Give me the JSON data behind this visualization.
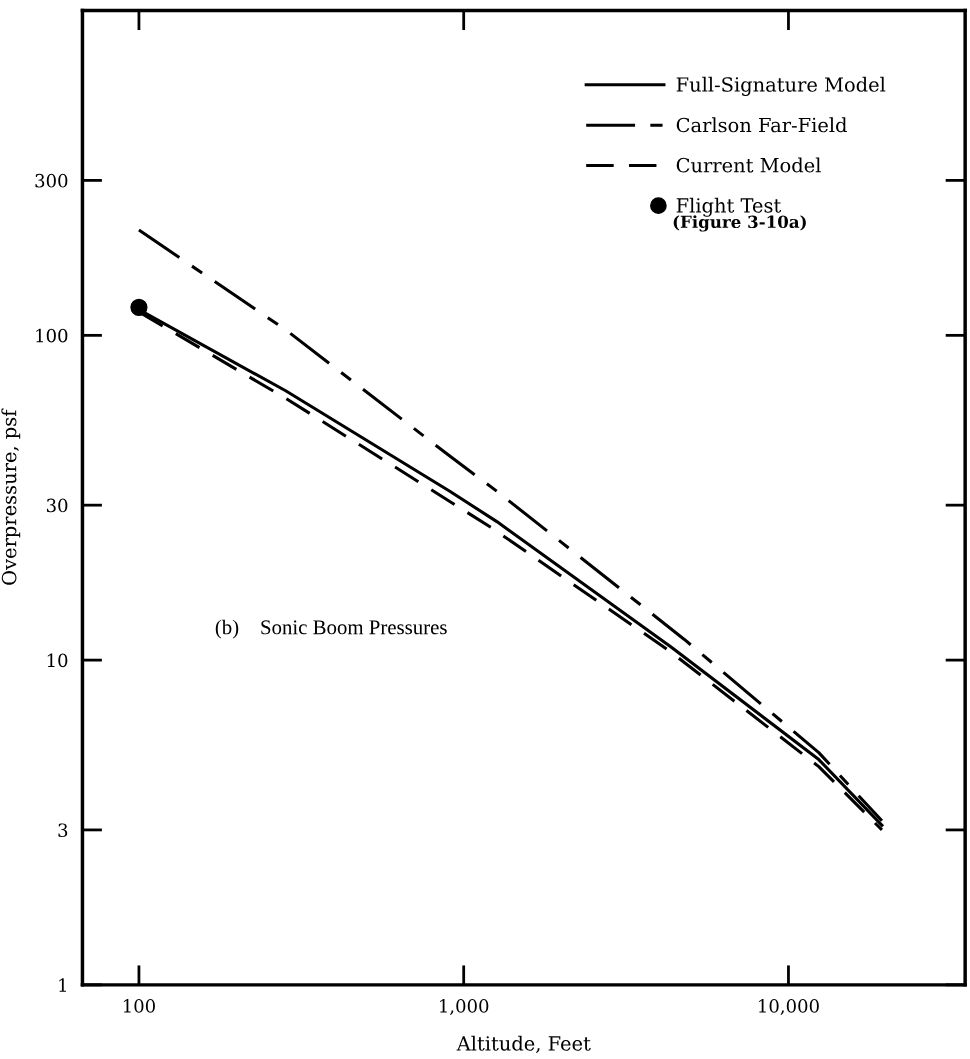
{
  "chart_data": {
    "type": "line",
    "xlabel": "Altitude, Feet",
    "ylabel": "Overpressure, psf",
    "log": "xy",
    "grid": false,
    "legend": "top right",
    "xlim": [
      67,
      35000
    ],
    "xticks": [
      {
        "value": 100,
        "label": "100"
      },
      {
        "value": 1000,
        "label": "1,000"
      },
      {
        "value": 10000,
        "label": "10,000"
      }
    ],
    "ylim": [
      1,
      1000
    ],
    "yticks": [
      1,
      3,
      10,
      30,
      100,
      300
    ],
    "series": [
      {
        "name": "Full-Signature Model",
        "color": "#000000",
        "line_style": "solid",
        "marker": "none",
        "x": [
          100,
          283,
          906,
          1265,
          4340,
          12400,
          19400
        ],
        "values": [
          120,
          67.5,
          33.1,
          26.7,
          11.0,
          4.94,
          3.1
        ]
      },
      {
        "name": "Carlson Far-Field",
        "color": "#000000",
        "line_style": "dashdot",
        "marker": "none",
        "x": [
          100,
          283,
          906,
          1265,
          4770,
          12400,
          19400
        ],
        "values": [
          211,
          104,
          42.5,
          33.1,
          11.6,
          5.19,
          3.2
        ]
      },
      {
        "name": "Current Model",
        "color": "#000000",
        "line_style": "dashed",
        "marker": "none",
        "x": [
          100,
          283,
          906,
          1230,
          4340,
          12400,
          19400
        ],
        "values": [
          118,
          64,
          30.8,
          25.4,
          10.6,
          4.7,
          3.0
        ]
      },
      {
        "name": "Flight Test",
        "color": "#000000",
        "type": "scatter",
        "marker": "circle",
        "x": [
          100
        ],
        "values": [
          122
        ]
      }
    ],
    "annotations": [
      "(Figure 3-10a)",
      "(b)    Sonic Boom Pressures"
    ]
  }
}
